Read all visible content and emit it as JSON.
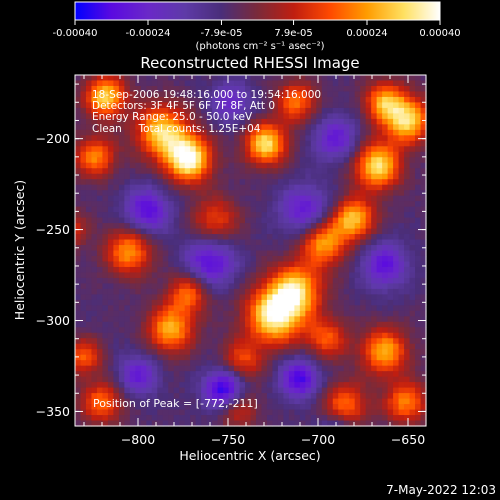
{
  "colorbar": {
    "ticks": [
      -0.0004,
      -0.00024,
      -7.9e-05,
      7.9e-05,
      0.00024,
      0.0004
    ],
    "tick_labels": [
      "-0.00040",
      "-0.00024",
      "-7.9e-05",
      "7.9e-05",
      "0.00024",
      "0.00040"
    ],
    "range": [
      -0.0004,
      0.0004
    ],
    "unit_label": "(photons cm⁻² s⁻¹ asec⁻²)",
    "stops": [
      "#0000ff",
      "#5a0ae0",
      "#6a28c8",
      "#5e3aa8",
      "#4a2e7a",
      "#7a2a3a",
      "#c01e10",
      "#ff4a00",
      "#ff9c00",
      "#ffe060",
      "#ffffff"
    ]
  },
  "chart_data": {
    "type": "heatmap",
    "title": "Reconstructed RHESSI Image",
    "xlabel": "Heliocentric X (arcsec)",
    "ylabel": "Heliocentric Y (arcsec)",
    "xlim": [
      -835,
      -640
    ],
    "ylim": [
      -358,
      -165
    ],
    "x_ticks": [
      -800,
      -750,
      -700,
      -650
    ],
    "x_tick_labels": [
      "−800",
      "−750",
      "−700",
      "−650"
    ],
    "y_ticks": [
      -200,
      -250,
      -300,
      -350
    ],
    "y_tick_labels": [
      "−200",
      "−250",
      "−300",
      "−350"
    ],
    "annotations": [
      "18-Sep-2006 19:48:16.000 to 19:54:16.000",
      "Detectors: 3F 4F 5F 6F 7F 8F, Att 0",
      "Energy Range: 25.0 - 50.0 keV",
      "Clean     Total counts: 1.25E+04"
    ],
    "peak_label": "Position of Peak = [-772,-211]",
    "peak": [
      -772,
      -211
    ],
    "sources": [
      {
        "x": -772,
        "y": -211,
        "amp": 1.0,
        "s": 9
      },
      {
        "x": -787,
        "y": -196,
        "amp": 0.8,
        "s": 10
      },
      {
        "x": -724,
        "y": -297,
        "amp": 0.95,
        "s": 11
      },
      {
        "x": -712,
        "y": -283,
        "amp": 0.75,
        "s": 10
      },
      {
        "x": -697,
        "y": -257,
        "amp": 0.7,
        "s": 9
      },
      {
        "x": -680,
        "y": -244,
        "amp": 0.75,
        "s": 8
      },
      {
        "x": -667,
        "y": -215,
        "amp": 0.85,
        "s": 9
      },
      {
        "x": -650,
        "y": -190,
        "amp": 0.8,
        "s": 9
      },
      {
        "x": -663,
        "y": -180,
        "amp": 0.65,
        "s": 8
      },
      {
        "x": -729,
        "y": -203,
        "amp": 0.85,
        "s": 8
      },
      {
        "x": -712,
        "y": -180,
        "amp": 0.55,
        "s": 8
      },
      {
        "x": -818,
        "y": -177,
        "amp": 0.8,
        "s": 8
      },
      {
        "x": -824,
        "y": -210,
        "amp": 0.6,
        "s": 8
      },
      {
        "x": -805,
        "y": -262,
        "amp": 0.65,
        "s": 9
      },
      {
        "x": -782,
        "y": -305,
        "amp": 0.7,
        "s": 9
      },
      {
        "x": -772,
        "y": -285,
        "amp": 0.55,
        "s": 8
      },
      {
        "x": -757,
        "y": -245,
        "amp": 0.45,
        "s": 9
      },
      {
        "x": -820,
        "y": -345,
        "amp": 0.55,
        "s": 8
      },
      {
        "x": -745,
        "y": -348,
        "amp": 0.4,
        "s": 8
      },
      {
        "x": -663,
        "y": -317,
        "amp": 0.7,
        "s": 9
      },
      {
        "x": -685,
        "y": -347,
        "amp": 0.55,
        "s": 9
      },
      {
        "x": -651,
        "y": -345,
        "amp": 0.6,
        "s": 8
      },
      {
        "x": -830,
        "y": -320,
        "amp": 0.5,
        "s": 7
      },
      {
        "x": -840,
        "y": -250,
        "amp": 0.5,
        "s": 7
      },
      {
        "x": -695,
        "y": -310,
        "amp": 0.5,
        "s": 8
      },
      {
        "x": -742,
        "y": -322,
        "amp": 0.45,
        "s": 8
      },
      {
        "x": -795,
        "y": -240,
        "amp": -0.55,
        "s": 9
      },
      {
        "x": -760,
        "y": -268,
        "amp": -0.55,
        "s": 10
      },
      {
        "x": -707,
        "y": -240,
        "amp": -0.5,
        "s": 10
      },
      {
        "x": -752,
        "y": -338,
        "amp": -0.75,
        "s": 8
      },
      {
        "x": -710,
        "y": -332,
        "amp": -0.6,
        "s": 8
      },
      {
        "x": -663,
        "y": -270,
        "amp": -0.5,
        "s": 9
      },
      {
        "x": -748,
        "y": -180,
        "amp": -0.4,
        "s": 8
      },
      {
        "x": -690,
        "y": -200,
        "amp": -0.45,
        "s": 9
      },
      {
        "x": -800,
        "y": -330,
        "amp": -0.45,
        "s": 8
      },
      {
        "x": -690,
        "y": -360,
        "amp": -0.35,
        "s": 7
      }
    ]
  },
  "footer": {
    "timestamp": "7-May-2022 12:03"
  }
}
